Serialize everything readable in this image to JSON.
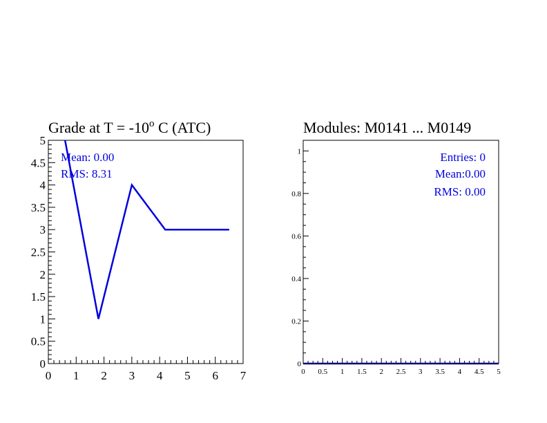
{
  "chart_data": [
    {
      "type": "line",
      "title_main": "Grade at T =  -10",
      "title_sup": "o",
      "title_rest": " C (ATC)",
      "xlim": [
        0,
        7
      ],
      "ylim": [
        0,
        5
      ],
      "xticks": [
        "0",
        "1",
        "2",
        "3",
        "4",
        "5",
        "6",
        "7"
      ],
      "yticks": [
        "0",
        "0.5",
        "1",
        "1.5",
        "2",
        "2.5",
        "3",
        "3.5",
        "4",
        "4.5",
        "5"
      ],
      "series": [
        {
          "x": [
            0.6,
            1.8,
            3.0,
            4.2,
            5.4,
            6.5
          ],
          "y": [
            5.0,
            1.0,
            4.0,
            3.0,
            3.0,
            3.0
          ]
        }
      ],
      "stats": {
        "mean": "Mean: 0.00",
        "rms": "RMS:  8.31"
      },
      "line_color": "#0000e0"
    },
    {
      "type": "line",
      "title": "Modules:  M0141 ... M0149",
      "xlim": [
        0,
        5
      ],
      "ylim": [
        0,
        1.05
      ],
      "xticks": [
        "0",
        "0.5",
        "1",
        "1.5",
        "2",
        "2.5",
        "3",
        "3.5",
        "4",
        "4.5",
        "5"
      ],
      "yticks": [
        "0",
        "0.2",
        "0.4",
        "0.6",
        "0.8",
        "1"
      ],
      "series": [
        {
          "x": [
            0,
            5
          ],
          "y": [
            0,
            0
          ]
        }
      ],
      "stats": {
        "entries": "Entries:   0",
        "mean": "Mean:0.00",
        "rms": "RMS: 0.00"
      },
      "line_color": "#000080"
    }
  ]
}
